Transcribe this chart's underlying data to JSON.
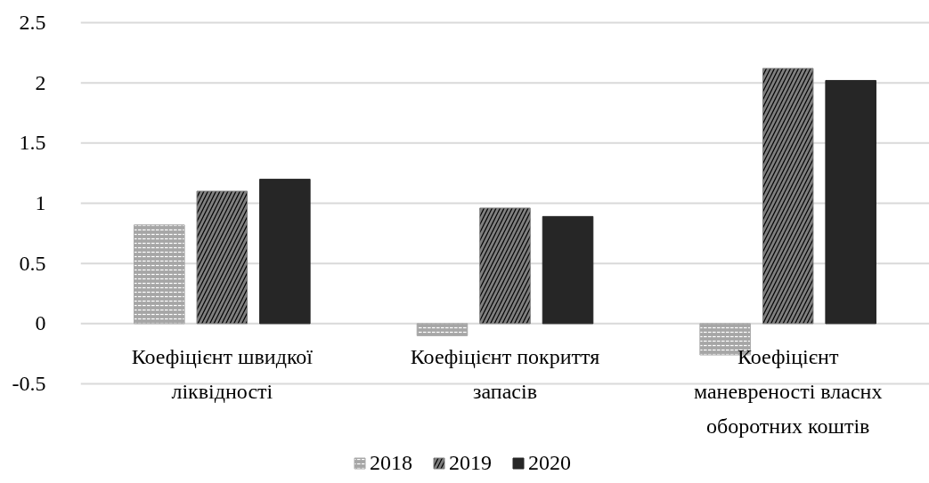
{
  "chart_data": {
    "type": "bar",
    "categories": [
      "Коефіцієнт швидкої ліквідності",
      "Коефіцієнт покриття запасів",
      "Коефіцієнт маневреності власнх оборотних коштів"
    ],
    "series": [
      {
        "name": "2018",
        "color": "#a6a6a6",
        "values": [
          0.82,
          -0.1,
          -0.26
        ]
      },
      {
        "name": "2019",
        "color": "#7f7f7f",
        "values": [
          1.1,
          0.96,
          2.12
        ]
      },
      {
        "name": "2020",
        "color": "#262626",
        "values": [
          1.2,
          0.89,
          2.02
        ]
      }
    ],
    "ylim": [
      -0.5,
      2.5
    ],
    "yticks": [
      -0.5,
      0,
      0.5,
      1,
      1.5,
      2,
      2.5
    ],
    "grid": "y",
    "legend": "bottom"
  }
}
